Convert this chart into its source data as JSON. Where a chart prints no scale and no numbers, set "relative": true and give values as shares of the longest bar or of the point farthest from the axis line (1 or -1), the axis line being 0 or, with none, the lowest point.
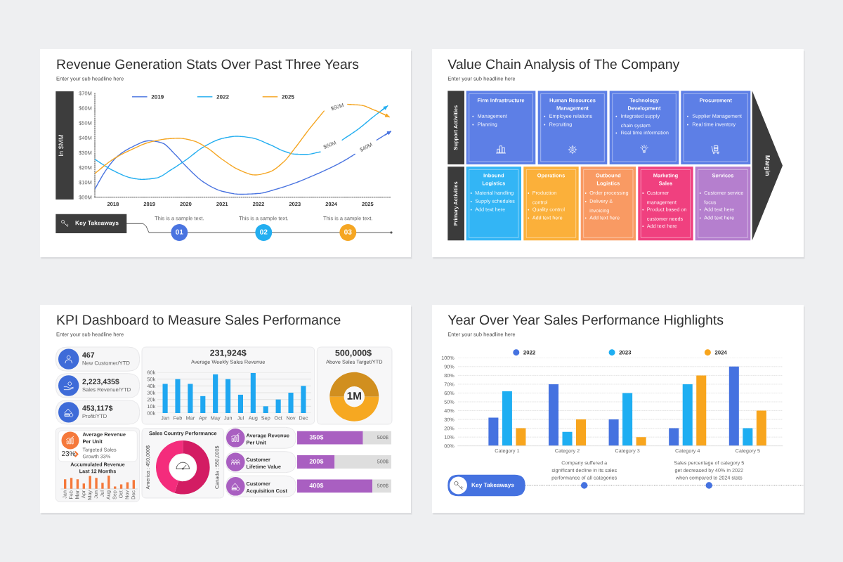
{
  "chart_data": [
    {
      "type": "line",
      "title": "Revenue Generation Stats Over Past Three Years",
      "subtitle": "Enter your sub headline here",
      "ylabel": "In $MM",
      "xlim": [
        2017.5,
        2025.65
      ],
      "xticks": [
        2018,
        2019,
        2020,
        2021,
        2022,
        2023,
        2024,
        2025
      ],
      "ylim": [
        0,
        70
      ],
      "yticks": [
        {
          "value": 0,
          "label": "$00M"
        },
        {
          "value": 10,
          "label": "$10M"
        },
        {
          "value": 20,
          "label": "$20M"
        },
        {
          "value": 30,
          "label": "$30M"
        },
        {
          "value": 40,
          "label": "$40M"
        },
        {
          "value": 50,
          "label": "$50M"
        },
        {
          "value": 60,
          "label": "$60M"
        },
        {
          "value": 70,
          "label": "$70M"
        }
      ],
      "series": [
        {
          "name": "2019",
          "color": "#4a74e0",
          "x": [
            2017.5,
            2017.8,
            2018.1,
            2018.5,
            2019.0,
            2019.35,
            2019.7,
            2020.0,
            2020.5,
            2021.0,
            2021.5,
            2022.0,
            2022.5,
            2023.0,
            2023.5,
            2024.0,
            2024.35,
            2024.65,
            2024.95,
            2025.25,
            2025.65
          ],
          "values": [
            5.5,
            18,
            27,
            33.5,
            38,
            36.5,
            29,
            21,
            10,
            4,
            2,
            2.5,
            5.5,
            9.5,
            14.5,
            20,
            24.5,
            29,
            null,
            38.5,
            44.5
          ]
        },
        {
          "name": "2022",
          "color": "#23aef0",
          "x": [
            2017.5,
            2018.0,
            2018.5,
            2018.8,
            2019.2,
            2019.6,
            2020.0,
            2020.5,
            2021.0,
            2021.4,
            2021.8,
            2022.3,
            2022.7,
            2023.0,
            2023.3,
            2023.7,
            2024.0,
            2024.3,
            2024.75,
            2025.15,
            2025.55
          ],
          "values": [
            25.5,
            18,
            13,
            12,
            13,
            18.5,
            25,
            34,
            39.5,
            41,
            40,
            35.5,
            31,
            29,
            28.8,
            30.5,
            null,
            38.5,
            46,
            54,
            61.5
          ]
        },
        {
          "name": "2025",
          "color": "#f5a623",
          "x": [
            2017.5,
            2018.0,
            2018.5,
            2019.0,
            2019.5,
            2019.8,
            2020.2,
            2020.6,
            2021.0,
            2021.5,
            2021.9,
            2022.3,
            2022.7,
            2023.0,
            2023.4,
            2023.8,
            2024.1,
            2024.45,
            2024.8,
            2025.2,
            2025.6
          ],
          "values": [
            16,
            25.5,
            32,
            37,
            39.3,
            39.7,
            38,
            33,
            25.5,
            18,
            15,
            17,
            24,
            33,
            46,
            58,
            null,
            62.5,
            62,
            58.5,
            54
          ]
        }
      ],
      "legend": "top",
      "annotations": [
        "$50M",
        "$60M",
        "$40M",
        "Key Takeaways",
        "This is a sample text.",
        "This is a sample text.",
        "This is a sample text.",
        "01",
        "02",
        "03"
      ]
    },
    {
      "type": "other",
      "title": "Value Chain Analysis of The Company",
      "subtitle": "Enter your sub headline here",
      "categories": [
        "Firm Infrastructure",
        "Human Resources\nManagement",
        "Technology\nDevelopment",
        "Procurement",
        "Inbound\nLogistics",
        "Operations",
        "Outbound\nLogistics",
        "Marketing\nSales",
        "Services"
      ],
      "annotations": [
        "Support Activities",
        "Primary Activities",
        "Margin",
        "Management",
        "Planning",
        "Employee relations",
        "Recruiting",
        "Integrated supply\nchain system",
        "Real time information",
        "Supplier Management",
        "Real time inventory",
        "Material handling",
        "Supply schedules",
        "Add text here",
        "Production\ncontrol",
        "Quality control",
        "Add text here",
        "Order processing",
        "Delivery &\ninvoicing",
        "Add text here",
        "Customer\nmanagement",
        "Product based on\ncustomer needs",
        "Add text here",
        "Customer service\nfocus",
        "Add text here",
        "Add text here"
      ]
    },
    {
      "type": "other",
      "title": "KPI Dashboard to Measure Sales Performance",
      "subtitle": "Enter your sub headline here",
      "annotations": [
        "467",
        "New Customer/YTD",
        "2,223,435$",
        "Sales Revenue/YTD",
        "453,117$",
        "Profit/YTD"
      ]
    },
    {
      "type": "bar",
      "title": "231,924$",
      "subtitle": "Average Weekly Sales Revenue",
      "categories": [
        "Jan",
        "Feb",
        "Mar",
        "Apr",
        "May",
        "Jun",
        "Jul",
        "Aug",
        "Sep",
        "Oct",
        "Nov",
        "Dec"
      ],
      "values": [
        43,
        50,
        43,
        25,
        57,
        50,
        27,
        59,
        10,
        20,
        30,
        40
      ],
      "color": "#1fa7f1",
      "ylim": [
        0,
        60
      ],
      "yticks": [
        {
          "value": 0,
          "label": "00k"
        },
        {
          "value": 10,
          "label": "10k"
        },
        {
          "value": 20,
          "label": "20k"
        },
        {
          "value": 30,
          "label": "30k"
        },
        {
          "value": 40,
          "label": "40k"
        },
        {
          "value": 50,
          "label": "50k"
        },
        {
          "value": 60,
          "label": "60k"
        }
      ],
      "grid": "y"
    },
    {
      "type": "donut",
      "title": "500,000$",
      "subtitle": "Above Sales Target/YTD",
      "categories": [
        null,
        null
      ],
      "values": [
        50,
        50
      ],
      "colors": [
        "#d18f1f",
        "#f6a821"
      ],
      "annotations": [
        "1M"
      ]
    },
    {
      "type": "other",
      "title": "Average Revenue\nPer Unit",
      "annotations": [
        "23%",
        "Targeted Sales\nGrowth 33%"
      ]
    },
    {
      "type": "bar",
      "title": "Accumulated Revenue\nLast 12 Months",
      "categories": [
        "Jan",
        "Feb",
        "Mar",
        "Apr",
        "May",
        "Jun",
        "Jul",
        "Aug",
        "Sep",
        "Oct",
        "Nov",
        "Dec"
      ],
      "values": [
        0.73,
        0.83,
        0.73,
        0.41,
        0.97,
        0.83,
        0.46,
        1,
        0.18,
        0.34,
        0.5,
        0.67
      ],
      "color": "#f5793b",
      "relative": true
    },
    {
      "type": "donut",
      "title": "Sales Country Performance",
      "categories": [
        "America : 450,000$",
        "Canada : 550,000$"
      ],
      "values": [
        450000,
        550000
      ],
      "colors": [
        "#f42c7c",
        "#d31c63"
      ]
    },
    {
      "type": "bar",
      "orientation": "horizontal",
      "stacked": true,
      "categories": [
        "Average Revenue\nPer Unit",
        "Customer\nLifetime Value",
        "Customer\nAcquisition Cost"
      ],
      "series": [
        {
          "color": "#a95fc1",
          "values": [
            350,
            200,
            400
          ],
          "value_labels": [
            "350$",
            "200$",
            "400$"
          ]
        },
        {
          "color": "#dedede",
          "values": [
            150,
            300,
            100
          ]
        }
      ],
      "totals": [
        "500$",
        "500$",
        "500$"
      ],
      "xlim": [
        0,
        500
      ],
      "tick_labels": "y"
    },
    {
      "type": "bar",
      "title": "Year Over Year Sales Performance Highlights",
      "subtitle": "Enter your sub headline here",
      "categories": [
        "Category 1",
        "Category 2",
        "Category 3",
        "Category 4",
        "Category 5"
      ],
      "series": [
        {
          "name": "2022",
          "color": "#4572e0",
          "values": [
            32,
            70,
            30,
            20,
            90
          ]
        },
        {
          "name": "2023",
          "color": "#1eaef2",
          "values": [
            62,
            16,
            60,
            70,
            20
          ]
        },
        {
          "name": "2024",
          "color": "#f8a51d",
          "values": [
            20,
            30,
            10,
            80,
            40
          ]
        }
      ],
      "ylim": [
        0,
        100
      ],
      "yticks": [
        {
          "value": 0,
          "label": "00%"
        },
        {
          "value": 10,
          "label": "10%"
        },
        {
          "value": 20,
          "label": "20%"
        },
        {
          "value": 30,
          "label": "30%"
        },
        {
          "value": 40,
          "label": "40%"
        },
        {
          "value": 50,
          "label": "50%"
        },
        {
          "value": 60,
          "label": "60%"
        },
        {
          "value": 70,
          "label": "70%"
        },
        {
          "value": 80,
          "label": "80%"
        },
        {
          "value": 90,
          "label": "90%"
        },
        {
          "value": 100,
          "label": "100%"
        }
      ],
      "grid": "y",
      "legend": "top",
      "annotations": [
        "Company suffered a\nsignificant decline in its sales\nperformance of all categories",
        "Sales percentage of category 5\nget decreased by 40% in 2022\nwhen compared to 2024 stats",
        "Key Takeaways"
      ]
    }
  ]
}
